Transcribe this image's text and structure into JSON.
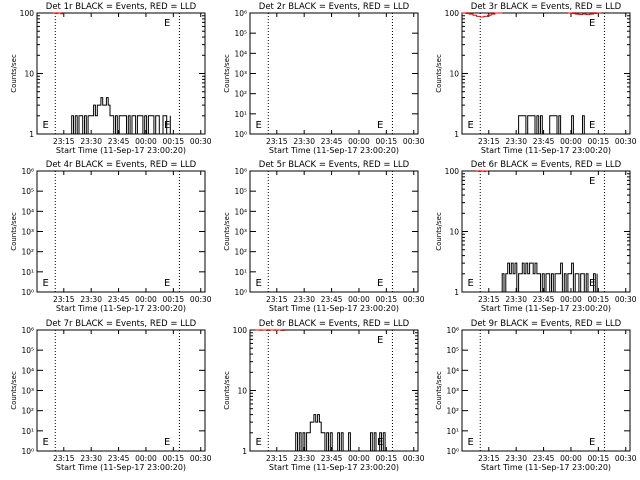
{
  "figure": {
    "x_ticks": [
      "23:15",
      "23:30",
      "23:45",
      "00:00",
      "00:15",
      "00:30"
    ],
    "x_label": "Start Time (11-Sep-17 23:00:20)",
    "y_label": "Counts/sec",
    "series_colors": {
      "events": "#000000",
      "lld": "#ff0000"
    }
  },
  "chart_data": [
    {
      "type": "line",
      "title": "Det 1r BLACK = Events, RED = LLD",
      "xlabel": "Start Time (11-Sep-17 23:00:20)",
      "ylabel": "Counts/sec",
      "yscale": "log",
      "ylim": [
        1,
        100
      ],
      "y_ticks": [
        "1",
        "10",
        "100"
      ],
      "flag_label": "E",
      "grid": false,
      "series": [
        {
          "color": "#ff0000",
          "x_minutes": [
            9,
            10,
            11,
            12,
            13,
            14
          ],
          "values": [
            100,
            98,
            99,
            100,
            97,
            100
          ]
        },
        {
          "color": "#000000",
          "x_minutes": [
            18,
            19,
            20,
            21,
            22,
            23,
            24,
            25,
            26,
            27,
            28,
            29,
            30,
            31,
            32,
            33,
            34,
            35,
            36,
            37,
            38,
            39,
            40,
            41,
            42,
            43,
            44,
            45,
            46,
            47,
            48,
            49,
            50,
            51,
            52,
            53,
            54,
            55,
            56,
            57,
            58,
            59,
            60,
            61,
            62,
            63,
            64,
            65,
            66,
            67,
            68,
            69,
            70,
            71,
            72,
            73
          ],
          "values": [
            1,
            2,
            1,
            2,
            1,
            2,
            2,
            1,
            2,
            1,
            2,
            2,
            2,
            3,
            2,
            3,
            3,
            4,
            3,
            3,
            4,
            3,
            2,
            2,
            1,
            2,
            1,
            2,
            2,
            2,
            2,
            1,
            2,
            1,
            2,
            2,
            1,
            2,
            2,
            2,
            1,
            2,
            1,
            2,
            2,
            2,
            1,
            2,
            2,
            1,
            1,
            2,
            2,
            1,
            1,
            2
          ]
        }
      ]
    },
    {
      "type": "line",
      "title": "Det 2r BLACK = Events, RED = LLD",
      "xlabel": "Start Time (11-Sep-17 23:00:20)",
      "ylabel": "Counts/sec",
      "yscale": "log",
      "ylim": [
        1,
        1000000
      ],
      "y_ticks": [
        "10⁰",
        "10¹",
        "10²",
        "10³",
        "10⁴",
        "10⁵",
        "10⁶"
      ],
      "flag_label": "E",
      "grid": false,
      "series": []
    },
    {
      "type": "line",
      "title": "Det 3r BLACK = Events, RED = LLD",
      "xlabel": "Start Time (11-Sep-17 23:00:20)",
      "ylabel": "Counts/sec",
      "yscale": "log",
      "ylim": [
        1,
        100
      ],
      "y_ticks": [
        "1",
        "10",
        "100"
      ],
      "flag_label": "E",
      "grid": false,
      "series": [
        {
          "color": "#ff0000",
          "x_minutes": [
            0,
            2,
            4,
            6,
            8,
            10,
            12,
            14,
            16,
            18,
            20,
            22
          ],
          "values": [
            100,
            98,
            96,
            92,
            88,
            86,
            88,
            92,
            96,
            100,
            100,
            100
          ]
        },
        {
          "color": "#ff0000",
          "x_minutes": [
            58,
            60,
            62,
            64,
            66,
            68,
            70,
            72,
            74,
            76
          ],
          "values": [
            100,
            98,
            96,
            94,
            96,
            94,
            96,
            98,
            100,
            100
          ]
        },
        {
          "color": "#000000",
          "x_minutes": [
            30,
            31,
            35,
            36,
            38,
            40,
            41,
            42,
            43,
            44,
            48,
            52,
            53,
            54,
            60,
            61,
            66,
            67
          ],
          "values": [
            1,
            2,
            1,
            2,
            2,
            1,
            2,
            1,
            2,
            1,
            2,
            1,
            2,
            1,
            2,
            1,
            2,
            1
          ]
        }
      ]
    },
    {
      "type": "line",
      "title": "Det 4r BLACK = Events, RED = LLD",
      "xlabel": "Start Time (11-Sep-17 23:00:20)",
      "ylabel": "Counts/sec",
      "yscale": "log",
      "ylim": [
        1,
        1000000
      ],
      "y_ticks": [
        "10⁰",
        "10¹",
        "10²",
        "10³",
        "10⁴",
        "10⁵",
        "10⁶"
      ],
      "flag_label": "E",
      "grid": false,
      "series": []
    },
    {
      "type": "line",
      "title": "Det 5r BLACK = Events, RED = LLD",
      "xlabel": "Start Time (11-Sep-17 23:00:20)",
      "ylabel": "Counts/sec",
      "yscale": "log",
      "ylim": [
        1,
        1000000
      ],
      "y_ticks": [
        "10⁰",
        "10¹",
        "10²",
        "10³",
        "10⁴",
        "10⁵",
        "10⁶"
      ],
      "flag_label": "E",
      "grid": false,
      "series": []
    },
    {
      "type": "line",
      "title": "Det 6r BLACK = Events, RED = LLD",
      "xlabel": "Start Time (11-Sep-17 23:00:20)",
      "ylabel": "Counts/sec",
      "yscale": "log",
      "ylim": [
        1,
        100
      ],
      "y_ticks": [
        "1",
        "10",
        "100"
      ],
      "flag_label": "E",
      "grid": false,
      "series": [
        {
          "color": "#ff0000",
          "x_minutes": [
            8,
            9,
            10,
            11,
            12,
            13,
            14
          ],
          "values": [
            100,
            98,
            99,
            100,
            98,
            100,
            100
          ]
        },
        {
          "color": "#000000",
          "x_minutes": [
            21,
            22,
            23,
            24,
            25,
            26,
            27,
            28,
            29,
            30,
            31,
            32,
            33,
            34,
            35,
            36,
            37,
            38,
            39,
            40,
            41,
            42,
            43,
            44,
            45,
            46,
            47,
            48,
            49,
            50,
            51,
            52,
            53,
            54,
            55,
            56,
            57,
            58,
            59,
            60,
            61,
            62,
            63,
            64,
            65,
            66,
            67,
            68,
            69,
            70,
            71,
            72,
            73,
            74
          ],
          "values": [
            1,
            2,
            1,
            2,
            3,
            2,
            3,
            2,
            3,
            1,
            2,
            2,
            3,
            2,
            3,
            2,
            3,
            3,
            2,
            3,
            2,
            2,
            1,
            2,
            1,
            2,
            2,
            1,
            2,
            1,
            2,
            2,
            2,
            3,
            1,
            2,
            1,
            2,
            2,
            3,
            1,
            2,
            2,
            1,
            2,
            2,
            1,
            2,
            1,
            1,
            1,
            2,
            1,
            2
          ]
        }
      ]
    },
    {
      "type": "line",
      "title": "Det 7r BLACK = Events, RED = LLD",
      "xlabel": "Start Time (11-Sep-17 23:00:20)",
      "ylabel": "Counts/sec",
      "yscale": "log",
      "ylim": [
        1,
        1000000
      ],
      "y_ticks": [
        "10⁰",
        "10¹",
        "10²",
        "10³",
        "10⁴",
        "10⁵",
        "10⁶"
      ],
      "flag_label": "E",
      "grid": false,
      "series": []
    },
    {
      "type": "line",
      "title": "Det 8r BLACK = Events, RED = LLD",
      "xlabel": "Start Time (11-Sep-17 23:00:20)",
      "ylabel": "Counts/sec",
      "yscale": "log",
      "ylim": [
        1,
        100
      ],
      "y_ticks": [
        "1",
        "10",
        "100"
      ],
      "flag_label": "E",
      "grid": false,
      "series": [
        {
          "color": "#ff0000",
          "x_minutes": [
            3,
            5,
            7,
            9,
            11,
            13,
            15,
            17,
            19
          ],
          "values": [
            100,
            99,
            100,
            98,
            100,
            99,
            100,
            98,
            100
          ]
        },
        {
          "color": "#000000",
          "x_minutes": [
            24,
            25,
            26,
            27,
            28,
            29,
            30,
            31,
            32,
            33,
            34,
            35,
            36,
            37,
            38,
            39,
            40,
            41,
            42,
            43,
            44,
            45,
            46,
            47,
            48,
            49,
            50,
            51,
            52,
            53,
            54,
            55,
            56,
            57,
            58,
            59,
            60,
            61,
            62,
            63,
            64,
            65,
            66,
            67,
            68,
            69,
            70,
            71,
            72,
            73,
            74,
            75
          ],
          "values": [
            1,
            2,
            1,
            2,
            1,
            2,
            1,
            2,
            2,
            3,
            3,
            4,
            3,
            4,
            3,
            2,
            2,
            1,
            2,
            1,
            2,
            1,
            1,
            1,
            2,
            1,
            2,
            1,
            1,
            1,
            2,
            1,
            1,
            1,
            1,
            1,
            1,
            1,
            1,
            1,
            1,
            1,
            2,
            1,
            2,
            1,
            1,
            2,
            1,
            2,
            1,
            1
          ]
        }
      ]
    },
    {
      "type": "line",
      "title": "Det 9r BLACK = Events, RED = LLD",
      "xlabel": "Start Time (11-Sep-17 23:00:20)",
      "ylabel": "Counts/sec",
      "yscale": "log",
      "ylim": [
        1,
        1000000
      ],
      "y_ticks": [
        "10⁰",
        "10¹",
        "10²",
        "10³",
        "10⁴",
        "10⁵",
        "10⁶"
      ],
      "flag_label": "E",
      "grid": false,
      "series": []
    }
  ]
}
